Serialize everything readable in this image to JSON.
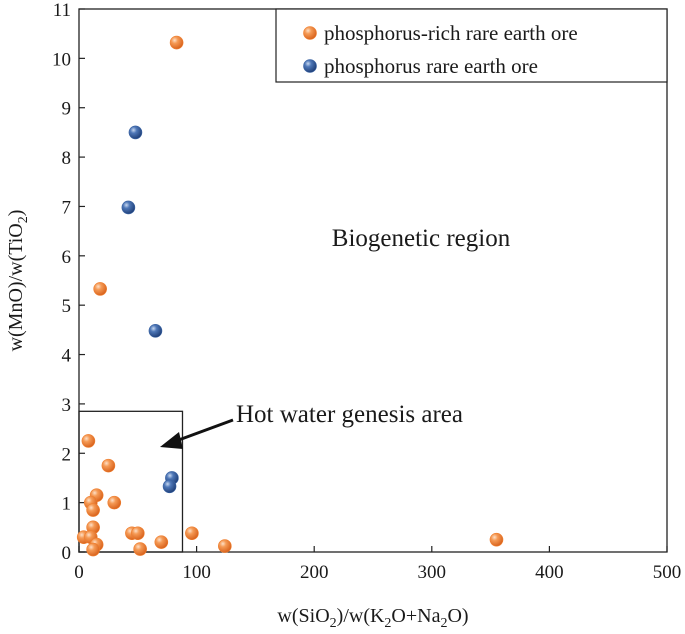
{
  "chart_data": {
    "type": "scatter",
    "title": "",
    "xlabel": "w(SiO2)/w(K2O+Na2O)",
    "ylabel": "w(MnO)/w(TiO2)",
    "xlim": [
      0,
      500
    ],
    "ylim": [
      0,
      11
    ],
    "xticks": [
      "0",
      "100",
      "200",
      "300",
      "400",
      "500"
    ],
    "yticks": [
      "0",
      "1",
      "2",
      "3",
      "4",
      "5",
      "6",
      "7",
      "8",
      "9",
      "10",
      "11"
    ],
    "grid": false,
    "legend_position": "top-right",
    "series": [
      {
        "name": "phosphorus-rich rare earth ore",
        "color": "#f07f2f",
        "points": [
          [
            83,
            10.32
          ],
          [
            18,
            5.33
          ],
          [
            8,
            2.25
          ],
          [
            25,
            1.75
          ],
          [
            15,
            1.15
          ],
          [
            30,
            1.0
          ],
          [
            10,
            1.0
          ],
          [
            12,
            0.85
          ],
          [
            12,
            0.5
          ],
          [
            4,
            0.3
          ],
          [
            10,
            0.3
          ],
          [
            15,
            0.15
          ],
          [
            12,
            0.05
          ],
          [
            45,
            0.38
          ],
          [
            50,
            0.38
          ],
          [
            52,
            0.06
          ],
          [
            70,
            0.2
          ],
          [
            96,
            0.38
          ],
          [
            124,
            0.12
          ],
          [
            355,
            0.25
          ]
        ]
      },
      {
        "name": "phosphorus rare earth ore",
        "color": "#3a63a3",
        "points": [
          [
            48,
            8.5
          ],
          [
            42,
            6.98
          ],
          [
            65,
            4.48
          ],
          [
            79,
            1.5
          ],
          [
            77,
            1.33
          ]
        ]
      }
    ],
    "regions": [
      {
        "label": "Biogenetic region"
      },
      {
        "label": "Hot water genesis area",
        "x": [
          0,
          88
        ],
        "y": [
          0,
          2.85
        ]
      }
    ]
  }
}
